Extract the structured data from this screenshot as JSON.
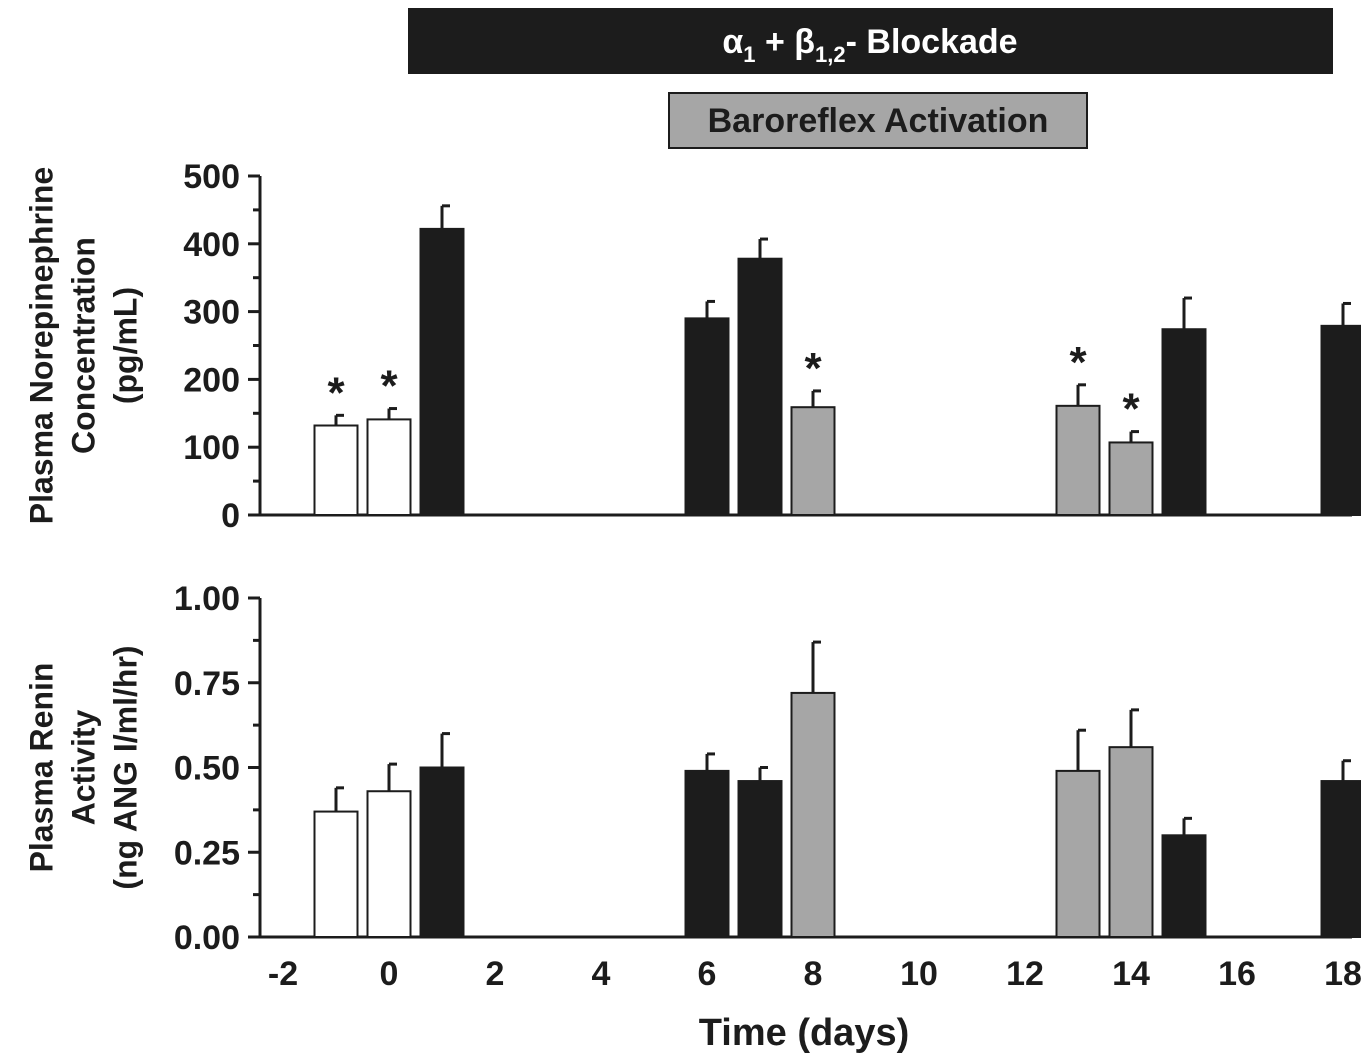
{
  "header": {
    "blockade_label": "α",
    "blockade_sub1": "1",
    "blockade_mid": " + β",
    "blockade_sub2": "1,2",
    "blockade_tail": "- Blockade",
    "baroreflex_label": "Baroreflex Activation"
  },
  "colors": {
    "control": "#ffffff",
    "blockade": "#1c1c1c",
    "baroreflex": "#a6a6a6",
    "axis": "#1c1c1c"
  },
  "chart_data": [
    {
      "type": "bar",
      "title": "",
      "xlabel": "Time (days)",
      "ylabel_lines": [
        "Plasma Norepinephrine",
        "Concentration",
        "(pg/mL)"
      ],
      "ylim": [
        0,
        500
      ],
      "xlim": [
        -2.5,
        19
      ],
      "yticks": [
        0,
        100,
        200,
        300,
        400,
        500
      ],
      "ytick_labels": [
        "0",
        "100",
        "200",
        "300",
        "400",
        "500"
      ],
      "bars": [
        {
          "day": -1,
          "value": 132,
          "error": 15,
          "group": "control",
          "star": true
        },
        {
          "day": 0,
          "value": 141,
          "error": 16,
          "group": "control",
          "star": true
        },
        {
          "day": 1,
          "value": 422,
          "error": 34,
          "group": "blockade",
          "star": false
        },
        {
          "day": 6,
          "value": 290,
          "error": 25,
          "group": "blockade",
          "star": false
        },
        {
          "day": 7,
          "value": 378,
          "error": 29,
          "group": "blockade",
          "star": false
        },
        {
          "day": 8,
          "value": 159,
          "error": 24,
          "group": "baroreflex",
          "star": true
        },
        {
          "day": 13,
          "value": 161,
          "error": 31,
          "group": "baroreflex",
          "star": true
        },
        {
          "day": 14,
          "value": 107,
          "error": 16,
          "group": "baroreflex",
          "star": true
        },
        {
          "day": 15,
          "value": 274,
          "error": 46,
          "group": "blockade",
          "star": false
        },
        {
          "day": 18,
          "value": 279,
          "error": 33,
          "group": "blockade",
          "star": false
        }
      ],
      "star_symbol": "*"
    },
    {
      "type": "bar",
      "title": "",
      "xlabel": "Time (days)",
      "ylabel_lines": [
        "Plasma Renin",
        "Activity",
        "(ng ANG I/ml/hr)"
      ],
      "ylim": [
        0,
        1.0
      ],
      "xlim": [
        -2.5,
        19
      ],
      "yticks": [
        0,
        0.25,
        0.5,
        0.75,
        1.0
      ],
      "ytick_labels": [
        "0.00",
        "0.25",
        "0.50",
        "0.75",
        "1.00"
      ],
      "bars": [
        {
          "day": -1,
          "value": 0.37,
          "error": 0.07,
          "group": "control"
        },
        {
          "day": 0,
          "value": 0.43,
          "error": 0.08,
          "group": "control"
        },
        {
          "day": 1,
          "value": 0.5,
          "error": 0.1,
          "group": "blockade"
        },
        {
          "day": 6,
          "value": 0.49,
          "error": 0.05,
          "group": "blockade"
        },
        {
          "day": 7,
          "value": 0.46,
          "error": 0.04,
          "group": "blockade"
        },
        {
          "day": 8,
          "value": 0.72,
          "error": 0.15,
          "group": "baroreflex"
        },
        {
          "day": 13,
          "value": 0.49,
          "error": 0.12,
          "group": "baroreflex"
        },
        {
          "day": 14,
          "value": 0.56,
          "error": 0.11,
          "group": "baroreflex"
        },
        {
          "day": 15,
          "value": 0.3,
          "error": 0.05,
          "group": "blockade"
        },
        {
          "day": 18,
          "value": 0.46,
          "error": 0.06,
          "group": "blockade"
        }
      ],
      "xticks": [
        -2,
        0,
        2,
        4,
        6,
        8,
        10,
        12,
        14,
        16,
        18
      ],
      "xtick_labels": [
        "-2",
        "0",
        "2",
        "4",
        "6",
        "8",
        "10",
        "12",
        "14",
        "16",
        "18"
      ]
    }
  ]
}
